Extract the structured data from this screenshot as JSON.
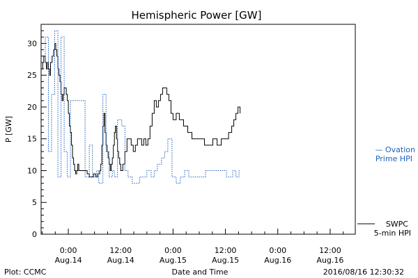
{
  "chart_data": {
    "type": "line",
    "title": "Hemispheric Power [GW]",
    "ylabel": "P [GW]",
    "xlabel": "Date and Time",
    "ylim": [
      0,
      33
    ],
    "xlim": [
      -0.26,
      2.74
    ],
    "yticks": [
      0,
      5,
      10,
      15,
      20,
      25,
      30
    ],
    "xticks": [
      {
        "x": 0.0,
        "label1": "0:00",
        "label2": "Aug.14"
      },
      {
        "x": 0.5,
        "label1": "12:00",
        "label2": "Aug.14"
      },
      {
        "x": 1.0,
        "label1": "0:00",
        "label2": "Aug.15"
      },
      {
        "x": 1.5,
        "label1": "12:00",
        "label2": "Aug.15"
      },
      {
        "x": 2.0,
        "label1": "0:00",
        "label2": "Aug.16"
      },
      {
        "x": 2.5,
        "label1": "12:00",
        "label2": "Aug.16"
      }
    ],
    "x_units": "days since 2016-08-14 00:00",
    "series": [
      {
        "name": "SWPC 5-min HPI",
        "legend_line1": "SWPC",
        "legend_line2": "5-min HPI",
        "color": "#000000",
        "style": "solid",
        "points": [
          [
            -0.26,
            26
          ],
          [
            -0.245,
            27
          ],
          [
            -0.235,
            28
          ],
          [
            -0.22,
            27
          ],
          [
            -0.21,
            26
          ],
          [
            -0.2,
            27
          ],
          [
            -0.19,
            26
          ],
          [
            -0.18,
            25
          ],
          [
            -0.17,
            27
          ],
          [
            -0.155,
            28
          ],
          [
            -0.14,
            29
          ],
          [
            -0.13,
            30
          ],
          [
            -0.12,
            29
          ],
          [
            -0.11,
            28
          ],
          [
            -0.1,
            26
          ],
          [
            -0.09,
            25
          ],
          [
            -0.08,
            24
          ],
          [
            -0.07,
            22
          ],
          [
            -0.06,
            21
          ],
          [
            -0.05,
            22
          ],
          [
            -0.04,
            23
          ],
          [
            -0.03,
            23
          ],
          [
            -0.02,
            22
          ],
          [
            -0.01,
            21
          ],
          [
            0.0,
            19
          ],
          [
            0.01,
            17
          ],
          [
            0.02,
            16
          ],
          [
            0.03,
            14
          ],
          [
            0.04,
            12
          ],
          [
            0.05,
            11
          ],
          [
            0.06,
            10
          ],
          [
            0.07,
            9.5
          ],
          [
            0.08,
            10
          ],
          [
            0.09,
            11
          ],
          [
            0.1,
            10
          ],
          [
            0.11,
            10
          ],
          [
            0.12,
            10
          ],
          [
            0.14,
            10
          ],
          [
            0.16,
            10
          ],
          [
            0.18,
            9.5
          ],
          [
            0.2,
            9
          ],
          [
            0.22,
            9
          ],
          [
            0.24,
            9.5
          ],
          [
            0.26,
            9
          ],
          [
            0.28,
            9.5
          ],
          [
            0.3,
            10
          ],
          [
            0.31,
            11
          ],
          [
            0.32,
            14
          ],
          [
            0.33,
            17
          ],
          [
            0.34,
            19
          ],
          [
            0.35,
            16
          ],
          [
            0.36,
            14
          ],
          [
            0.37,
            13
          ],
          [
            0.38,
            12
          ],
          [
            0.39,
            11
          ],
          [
            0.4,
            10
          ],
          [
            0.41,
            11
          ],
          [
            0.42,
            12
          ],
          [
            0.43,
            14
          ],
          [
            0.44,
            16
          ],
          [
            0.45,
            17
          ],
          [
            0.46,
            15
          ],
          [
            0.47,
            13
          ],
          [
            0.48,
            12
          ],
          [
            0.49,
            11
          ],
          [
            0.5,
            10
          ],
          [
            0.52,
            11
          ],
          [
            0.54,
            13
          ],
          [
            0.56,
            15
          ],
          [
            0.58,
            15
          ],
          [
            0.6,
            14
          ],
          [
            0.62,
            13
          ],
          [
            0.64,
            14
          ],
          [
            0.66,
            15
          ],
          [
            0.68,
            15
          ],
          [
            0.7,
            14
          ],
          [
            0.72,
            15
          ],
          [
            0.74,
            14
          ],
          [
            0.76,
            15
          ],
          [
            0.78,
            17
          ],
          [
            0.8,
            19
          ],
          [
            0.82,
            21
          ],
          [
            0.84,
            20
          ],
          [
            0.86,
            21
          ],
          [
            0.88,
            22
          ],
          [
            0.9,
            23
          ],
          [
            0.92,
            23
          ],
          [
            0.94,
            22
          ],
          [
            0.96,
            21
          ],
          [
            0.98,
            19
          ],
          [
            1.0,
            18
          ],
          [
            1.03,
            19
          ],
          [
            1.06,
            18
          ],
          [
            1.1,
            17
          ],
          [
            1.14,
            16
          ],
          [
            1.18,
            15
          ],
          [
            1.22,
            15
          ],
          [
            1.26,
            15
          ],
          [
            1.3,
            14
          ],
          [
            1.34,
            14
          ],
          [
            1.38,
            15
          ],
          [
            1.42,
            14
          ],
          [
            1.46,
            15
          ],
          [
            1.5,
            15
          ],
          [
            1.53,
            16
          ],
          [
            1.56,
            17
          ],
          [
            1.58,
            18
          ],
          [
            1.6,
            19
          ],
          [
            1.62,
            20
          ],
          [
            1.64,
            19
          ]
        ]
      },
      {
        "name": "Ovation Prime HPI",
        "legend_line1": "— Ovation",
        "legend_line2": "Prime HPI",
        "color": "#1f5fbf",
        "style": "dotted",
        "points": [
          [
            -0.26,
            27
          ],
          [
            -0.23,
            27
          ],
          [
            -0.22,
            31
          ],
          [
            -0.2,
            31
          ],
          [
            -0.19,
            13
          ],
          [
            -0.17,
            13
          ],
          [
            -0.16,
            22
          ],
          [
            -0.14,
            22
          ],
          [
            -0.13,
            32
          ],
          [
            -0.11,
            32
          ],
          [
            -0.1,
            9
          ],
          [
            -0.08,
            9
          ],
          [
            -0.07,
            31
          ],
          [
            -0.05,
            31
          ],
          [
            -0.04,
            13
          ],
          [
            -0.02,
            13
          ],
          [
            -0.01,
            9
          ],
          [
            0.01,
            9
          ],
          [
            0.02,
            21
          ],
          [
            0.15,
            21
          ],
          [
            0.16,
            9
          ],
          [
            0.19,
            9
          ],
          [
            0.2,
            14
          ],
          [
            0.22,
            14
          ],
          [
            0.23,
            9
          ],
          [
            0.26,
            9
          ],
          [
            0.27,
            10
          ],
          [
            0.28,
            10
          ],
          [
            0.29,
            8
          ],
          [
            0.32,
            8
          ],
          [
            0.33,
            22
          ],
          [
            0.35,
            22
          ],
          [
            0.36,
            13
          ],
          [
            0.38,
            13
          ],
          [
            0.39,
            9
          ],
          [
            0.41,
            9
          ],
          [
            0.42,
            10
          ],
          [
            0.43,
            10
          ],
          [
            0.44,
            9
          ],
          [
            0.46,
            9
          ],
          [
            0.47,
            18
          ],
          [
            0.5,
            18
          ],
          [
            0.51,
            17
          ],
          [
            0.53,
            17
          ],
          [
            0.54,
            10
          ],
          [
            0.56,
            10
          ],
          [
            0.57,
            9
          ],
          [
            0.6,
            9
          ],
          [
            0.61,
            8
          ],
          [
            0.67,
            8
          ],
          [
            0.68,
            9
          ],
          [
            0.74,
            9
          ],
          [
            0.75,
            10
          ],
          [
            0.78,
            10
          ],
          [
            0.79,
            9
          ],
          [
            0.81,
            9
          ],
          [
            0.82,
            10
          ],
          [
            0.84,
            10
          ],
          [
            0.85,
            11
          ],
          [
            0.88,
            11
          ],
          [
            0.89,
            12
          ],
          [
            0.91,
            12
          ],
          [
            0.92,
            13
          ],
          [
            0.94,
            13
          ],
          [
            0.95,
            15
          ],
          [
            0.98,
            15
          ],
          [
            0.99,
            9
          ],
          [
            1.02,
            9
          ],
          [
            1.03,
            8
          ],
          [
            1.06,
            8
          ],
          [
            1.07,
            9
          ],
          [
            1.1,
            9
          ],
          [
            1.11,
            10
          ],
          [
            1.14,
            10
          ],
          [
            1.15,
            9
          ],
          [
            1.3,
            9
          ],
          [
            1.31,
            10
          ],
          [
            1.5,
            10
          ],
          [
            1.51,
            9
          ],
          [
            1.56,
            9
          ],
          [
            1.57,
            10
          ],
          [
            1.59,
            10
          ],
          [
            1.6,
            9
          ],
          [
            1.62,
            9
          ],
          [
            1.63,
            10
          ],
          [
            1.64,
            10
          ]
        ]
      }
    ],
    "grid": false,
    "legend_position": "right"
  },
  "footer": {
    "left": "Plot: CCMC",
    "center": "Date and Time",
    "right": "2016/08/16 12:30:32"
  }
}
